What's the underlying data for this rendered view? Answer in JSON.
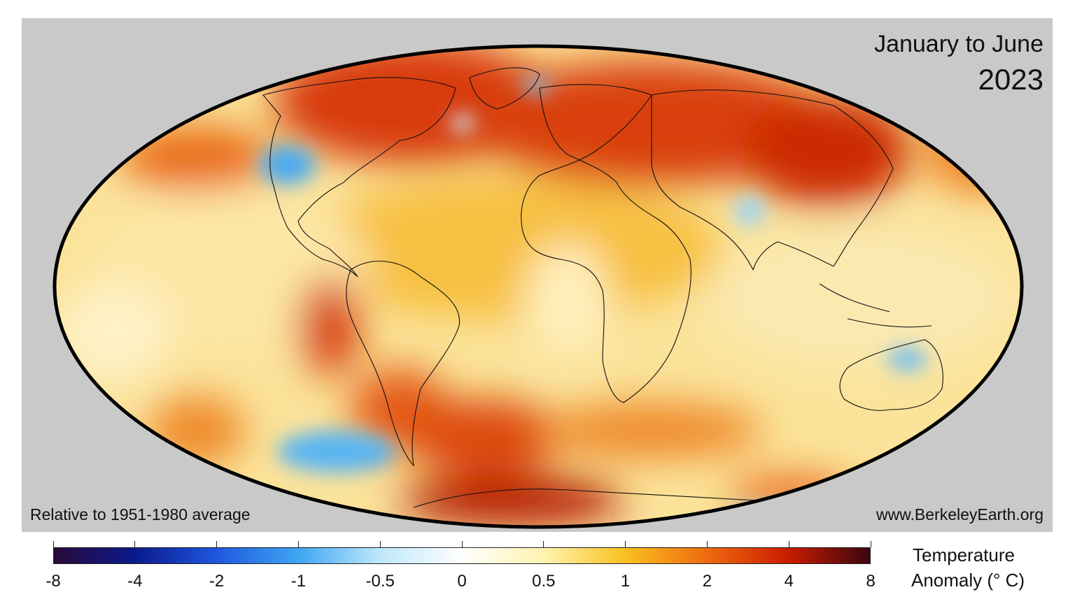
{
  "map": {
    "title_period": "January to June",
    "title_year": "2023",
    "baseline_note": "Relative to 1951-1980 average",
    "source_credit": "www.BerkeleyEarth.org",
    "projection": "mollweide",
    "background_color": "#c9c9c9",
    "ocean_base_color": "#fbe9a0"
  },
  "colorbar": {
    "tick_labels": [
      "-8",
      "-4",
      "-2",
      "-1",
      "-0.5",
      "0",
      "0.5",
      "1",
      "2",
      "4",
      "8"
    ],
    "tick_values": [
      -8,
      -4,
      -2,
      -1,
      -0.5,
      0,
      0.5,
      1,
      2,
      4,
      8
    ],
    "colors": [
      "#2a0a3a",
      "#0a1a8c",
      "#1f57e0",
      "#3fa6f2",
      "#bfe8fb",
      "#ffffff",
      "#fff3b0",
      "#f9c020",
      "#ef6a10",
      "#c81c00",
      "#3a0610"
    ],
    "title_line1": "Temperature",
    "title_line2": "Anomaly (° C)"
  }
}
